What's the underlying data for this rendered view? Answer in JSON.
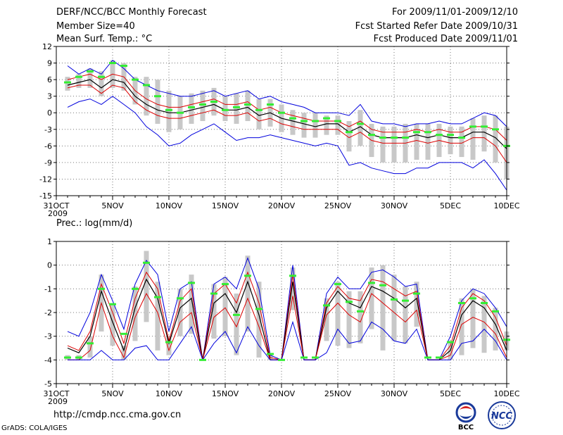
{
  "header": {
    "title": "DERF/NCC/BCC Monthly Forecast",
    "member": "Member Size=40",
    "variable": "Mean Surf. Temp.: °C",
    "period": "For 2009/11/01-2009/12/10",
    "started": "Fcst Started Refer Date 2009/10/31",
    "produced": "Fcst Produced Date 2009/11/01"
  },
  "footer": {
    "url": "http://cmdp.ncc.cma.gov.cn",
    "grads": "GrADS: COLA/IGES",
    "logo_bcc": "BCC",
    "logo_ncc": "NCC"
  },
  "colors": {
    "max_line": "#0000dd",
    "median_line": "#000000",
    "quartile_line": "#dd0000",
    "box": "#c8c8c8",
    "marker": "#33ee33"
  },
  "chart_data": [
    {
      "type": "line",
      "title": "Mean Surf. Temp.: °C",
      "ylabel": "Mean Surf. Temp. (°C)",
      "ylim": [
        -15,
        12
      ],
      "yticks": [
        12,
        9,
        6,
        3,
        0,
        -3,
        -6,
        -9,
        -12,
        -15
      ],
      "xlim": [
        0,
        40
      ],
      "x_ticks": [
        {
          "x": 0,
          "label": "31OCT"
        },
        {
          "x": 5,
          "label": "5NOV"
        },
        {
          "x": 10,
          "label": "10NOV"
        },
        {
          "x": 15,
          "label": "15NOV"
        },
        {
          "x": 20,
          "label": "20NOV"
        },
        {
          "x": 25,
          "label": "25NOV"
        },
        {
          "x": 30,
          "label": "30NOV"
        },
        {
          "x": 35,
          "label": "5DEC"
        },
        {
          "x": 40,
          "label": "10DEC"
        }
      ],
      "year_label": "2009",
      "x": [
        1,
        2,
        3,
        4,
        5,
        6,
        7,
        8,
        9,
        10,
        11,
        12,
        13,
        14,
        15,
        16,
        17,
        18,
        19,
        20,
        21,
        22,
        23,
        24,
        25,
        26,
        27,
        28,
        29,
        30,
        31,
        32,
        33,
        34,
        35,
        36,
        37,
        38,
        39,
        40
      ],
      "series": [
        {
          "name": "max",
          "role": "max",
          "values": [
            8.5,
            7,
            8,
            7,
            9.5,
            8,
            6,
            5,
            4,
            3.5,
            3,
            3,
            3.5,
            4,
            3,
            3.5,
            4,
            2.5,
            3,
            2,
            1.5,
            1,
            0,
            0,
            0,
            -0.5,
            1.5,
            -1.5,
            -2,
            -2,
            -2.5,
            -2,
            -2,
            -1.5,
            -2,
            -2,
            -1,
            0,
            -0.5,
            -2.5
          ]
        },
        {
          "name": "upper quartile",
          "role": "q75",
          "values": [
            6,
            6.5,
            7,
            6,
            7,
            6.5,
            4,
            2.5,
            1.5,
            1,
            1,
            1.5,
            2,
            2.5,
            1.5,
            1.5,
            2,
            0.5,
            1,
            0,
            -0.5,
            -1,
            -1.5,
            -1.5,
            -1.5,
            -2.5,
            -1.5,
            -3,
            -3.5,
            -3.5,
            -3.5,
            -3,
            -3.5,
            -3,
            -3.5,
            -3.5,
            -2.5,
            -2.5,
            -3,
            -5
          ]
        },
        {
          "name": "median",
          "role": "median",
          "values": [
            5,
            5.5,
            6,
            4.5,
            6,
            5.5,
            3,
            1.5,
            0.5,
            0,
            0,
            0.5,
            1,
            1.5,
            0.5,
            0.5,
            1,
            -0.5,
            0,
            -1,
            -1.5,
            -2,
            -2.5,
            -2,
            -2,
            -3.5,
            -2.5,
            -4,
            -4.5,
            -4.5,
            -4.5,
            -4,
            -4.5,
            -4,
            -4.5,
            -4.5,
            -3.5,
            -3.5,
            -4.5,
            -6.5
          ]
        },
        {
          "name": "lower quartile",
          "role": "q25",
          "values": [
            4.5,
            5,
            5,
            3.5,
            5,
            4.5,
            2,
            0.5,
            -0.5,
            -1,
            -1,
            -0.5,
            0,
            0.5,
            -0.5,
            -0.5,
            0,
            -1.5,
            -1,
            -2,
            -2.5,
            -3,
            -3,
            -3,
            -3,
            -4.5,
            -3.5,
            -5,
            -5.5,
            -5.5,
            -5.5,
            -5,
            -5.5,
            -5,
            -5.5,
            -5.5,
            -4.5,
            -4.5,
            -6,
            -9
          ]
        },
        {
          "name": "min",
          "role": "min",
          "values": [
            1,
            2,
            2.5,
            1.5,
            3,
            1.5,
            0,
            -2.5,
            -4,
            -6,
            -5.5,
            -4,
            -3,
            -2,
            -3.5,
            -5,
            -4.5,
            -4.5,
            -4,
            -4.5,
            -5,
            -5.5,
            -6,
            -5.5,
            -6,
            -9.5,
            -9,
            -10,
            -10.5,
            -11,
            -11,
            -10,
            -10,
            -9,
            -9,
            -9,
            -10,
            -8.5,
            -11,
            -14
          ]
        },
        {
          "name": "control",
          "role": "marker",
          "values": [
            5.5,
            6.5,
            7.5,
            6.5,
            9,
            8.5,
            6,
            5,
            3,
            0.5,
            0,
            1,
            1.5,
            2,
            0.5,
            1,
            1.5,
            0.5,
            1.5,
            0,
            -1,
            -1.5,
            -1.5,
            -1,
            -1.5,
            -3.5,
            -2,
            -4,
            -4.5,
            -4.5,
            -4.5,
            -3.5,
            -3.5,
            -4,
            -4,
            -4.5,
            -2.5,
            -2.5,
            -3,
            -6
          ]
        }
      ],
      "box_top": [
        6.5,
        7,
        8,
        7.5,
        9.5,
        9,
        6.5,
        6.5,
        6,
        4,
        3,
        3.5,
        4,
        4.5,
        3,
        3.5,
        4,
        2.5,
        2.5,
        1.5,
        0.5,
        0,
        0,
        -0.5,
        -0.5,
        -1.5,
        0.5,
        -2,
        -2.5,
        -2.5,
        -2,
        -2,
        -2,
        -2,
        -2.5,
        -2.5,
        -1,
        -0.5,
        -0.5,
        -2.5
      ],
      "box_bottom": [
        4,
        4.5,
        4.5,
        3,
        4.5,
        4,
        1.5,
        -0.5,
        -2,
        -3.5,
        -3,
        -2,
        -1.5,
        -0.5,
        -1.5,
        -2,
        -1.5,
        -3,
        -2.5,
        -3.5,
        -4,
        -4.5,
        -4.5,
        -4,
        -4,
        -7,
        -6,
        -8,
        -9,
        -9,
        -9,
        -8.5,
        -8.5,
        -8,
        -7.5,
        -8,
        -8.5,
        -7,
        -9,
        -12
      ]
    },
    {
      "type": "line",
      "title": "Prec.: log(mm/d)",
      "ylabel": "Precipitation log(mm/d)",
      "ylim": [
        -5,
        1
      ],
      "yticks": [
        1,
        0,
        -1,
        -2,
        -3,
        -4,
        -5
      ],
      "xlim": [
        0,
        40
      ],
      "x_ticks": [
        {
          "x": 0,
          "label": "31OCT"
        },
        {
          "x": 5,
          "label": "5NOV"
        },
        {
          "x": 10,
          "label": "10NOV"
        },
        {
          "x": 15,
          "label": "15NOV"
        },
        {
          "x": 20,
          "label": "20NOV"
        },
        {
          "x": 25,
          "label": "25NOV"
        },
        {
          "x": 30,
          "label": "30NOV"
        },
        {
          "x": 35,
          "label": "5DEC"
        },
        {
          "x": 40,
          "label": "10DEC"
        }
      ],
      "year_label": "2009",
      "x": [
        1,
        2,
        3,
        4,
        5,
        6,
        7,
        8,
        9,
        10,
        11,
        12,
        13,
        14,
        15,
        16,
        17,
        18,
        19,
        20,
        21,
        22,
        23,
        24,
        25,
        26,
        27,
        28,
        29,
        30,
        31,
        32,
        33,
        34,
        35,
        36,
        37,
        38,
        39,
        40
      ],
      "series": [
        {
          "name": "max",
          "role": "max",
          "values": [
            -2.8,
            -3,
            -2,
            -0.4,
            -1.5,
            -2.7,
            -0.8,
            0.2,
            -0.4,
            -2.8,
            -1,
            -0.7,
            -4,
            -0.8,
            -0.5,
            -1,
            0.3,
            -1,
            -3.8,
            -4,
            0,
            -4,
            -4,
            -1.2,
            -0.5,
            -1,
            -1,
            -0.3,
            -0.2,
            -0.5,
            -0.9,
            -0.8,
            -4,
            -4,
            -3,
            -1.5,
            -1,
            -1.2,
            -1.8,
            -2.6
          ]
        },
        {
          "name": "upper quartile",
          "role": "q75",
          "values": [
            -3.4,
            -3.6,
            -2.8,
            -0.8,
            -2,
            -3.3,
            -1.4,
            -0.3,
            -1,
            -3.2,
            -1.5,
            -1,
            -4,
            -1.2,
            -0.8,
            -1.6,
            -0.3,
            -1.6,
            -3.9,
            -4,
            -0.4,
            -4,
            -4,
            -1.6,
            -0.9,
            -1.4,
            -1.5,
            -0.6,
            -0.7,
            -1,
            -1.3,
            -1.1,
            -4,
            -4,
            -3.4,
            -1.8,
            -1.2,
            -1.5,
            -2.2,
            -3.4
          ]
        },
        {
          "name": "median",
          "role": "median",
          "values": [
            -3.5,
            -3.7,
            -3,
            -1.1,
            -2.4,
            -3.6,
            -1.8,
            -0.6,
            -1.4,
            -3.3,
            -1.8,
            -1.4,
            -4,
            -1.6,
            -1.2,
            -2,
            -0.7,
            -2.1,
            -4,
            -4,
            -0.7,
            -4,
            -4,
            -1.8,
            -1.1,
            -1.6,
            -1.8,
            -0.9,
            -1.1,
            -1.4,
            -1.8,
            -1.4,
            -4,
            -4,
            -3.6,
            -2.1,
            -1.5,
            -1.8,
            -2.5,
            -3.6
          ]
        },
        {
          "name": "lower quartile",
          "role": "q25",
          "values": [
            -4,
            -4,
            -3.6,
            -1.6,
            -3,
            -3.9,
            -2.2,
            -1.2,
            -2,
            -3.6,
            -2.4,
            -2,
            -4,
            -2.2,
            -1.8,
            -2.6,
            -1.4,
            -2.6,
            -4,
            -4,
            -1.3,
            -4,
            -4,
            -2.1,
            -1.6,
            -2.1,
            -2.4,
            -1.2,
            -1.6,
            -2,
            -2.4,
            -1.9,
            -4,
            -4,
            -3.8,
            -2.5,
            -2.2,
            -2.4,
            -2.9,
            -3.9
          ]
        },
        {
          "name": "min",
          "role": "min",
          "values": [
            -4,
            -4,
            -4,
            -3.6,
            -4,
            -4,
            -3.5,
            -3.4,
            -4,
            -4,
            -3.3,
            -2.6,
            -4,
            -3.3,
            -2.8,
            -3.7,
            -2.6,
            -3.4,
            -4,
            -4,
            -2.4,
            -4,
            -4,
            -3.7,
            -2.7,
            -3.3,
            -3.2,
            -2.4,
            -2.7,
            -3.2,
            -3.3,
            -2.7,
            -4,
            -4,
            -4,
            -3.3,
            -3.2,
            -2.7,
            -3.2,
            -4
          ]
        },
        {
          "name": "control",
          "role": "marker",
          "values": [
            -3.9,
            -3.9,
            -3.3,
            -1,
            -1.65,
            -2.9,
            -1,
            0.1,
            -1.35,
            -3.25,
            -1.4,
            -0.75,
            -4,
            -1.2,
            -0.8,
            -2.1,
            -0.45,
            -1.85,
            -3.75,
            -4,
            -0.45,
            -3.9,
            -3.9,
            -1.7,
            -0.8,
            -1.55,
            -1.95,
            -0.75,
            -0.85,
            -1.45,
            -1.5,
            -1.2,
            -3.9,
            -3.9,
            -3.25,
            -1.6,
            -1.4,
            -1.6,
            -1.95,
            -3.15
          ]
        }
      ],
      "box_top": [
        -3.8,
        -3.8,
        -3,
        -0.4,
        -1.6,
        -3.4,
        -0.9,
        0.6,
        -0.7,
        -3,
        -1,
        -0.4,
        -4,
        -0.8,
        -0.5,
        -1.2,
        0.4,
        -0.7,
        -3.8,
        -4,
        -0.1,
        -4,
        -4,
        -1.4,
        -0.7,
        -1.1,
        -1.1,
        -0.1,
        0,
        -0.4,
        -0.9,
        -0.7,
        -4,
        -4,
        -3.2,
        -1.4,
        -1,
        -1.3,
        -1.8,
        -2.8
      ],
      "box_bottom": [
        -4,
        -4,
        -3.9,
        -2.8,
        -3.4,
        -4,
        -3.2,
        -2.4,
        -3.6,
        -3.8,
        -3,
        -2.9,
        -4,
        -3.1,
        -3,
        -3.8,
        -2.8,
        -3.9,
        -4,
        -4,
        -1.9,
        -4,
        -4,
        -3.2,
        -3.4,
        -3.5,
        -3.3,
        -2.7,
        -3.6,
        -3.2,
        -3.3,
        -2.6,
        -4,
        -4,
        -4,
        -3.8,
        -3.5,
        -3.7,
        -3.6,
        -3.6
      ]
    }
  ]
}
